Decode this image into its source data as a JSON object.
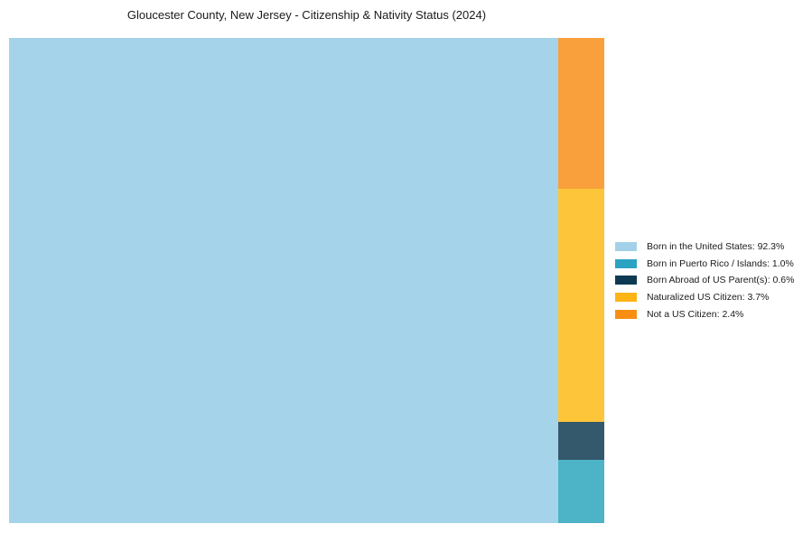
{
  "page": {
    "background_color": "#ffffff",
    "text_color": "#1a1a1a"
  },
  "chart_data": {
    "type": "treemap",
    "title": "Gloucester County, New Jersey - Citizenship & Nativity Status (2024)",
    "categories": [
      "Born in the United States",
      "Born in Puerto Rico / Islands",
      "Born Abroad of US Parent(s)",
      "Naturalized US Citizen",
      "Not a US Citizen"
    ],
    "values": [
      92.3,
      1.0,
      0.6,
      3.7,
      2.4
    ],
    "unit": "%",
    "legend_position": "right",
    "grid": false,
    "axes": false,
    "series_colors": [
      "#A3D1E9",
      "#2DA3C2",
      "#0D3A52",
      "#FCB514",
      "#F88F12"
    ],
    "block_colors": [
      "#A5D3E9",
      "#4DB3C7",
      "#34586C",
      "#FDC53A",
      "#F9A03C"
    ],
    "layout": {
      "main_index": 0,
      "column_order_top_to_bottom": [
        4,
        3,
        2,
        1
      ]
    }
  },
  "legend": {
    "items": [
      {
        "label": "Born in the United States: 92.3%",
        "color": "#A3D1E9"
      },
      {
        "label": "Born in Puerto Rico / Islands: 1.0%",
        "color": "#2DA3C2"
      },
      {
        "label": "Born Abroad of US Parent(s): 0.6%",
        "color": "#0D3A52"
      },
      {
        "label": "Naturalized US Citizen: 3.7%",
        "color": "#FCB514"
      },
      {
        "label": "Not a US Citizen: 2.4%",
        "color": "#F88F12"
      }
    ]
  }
}
